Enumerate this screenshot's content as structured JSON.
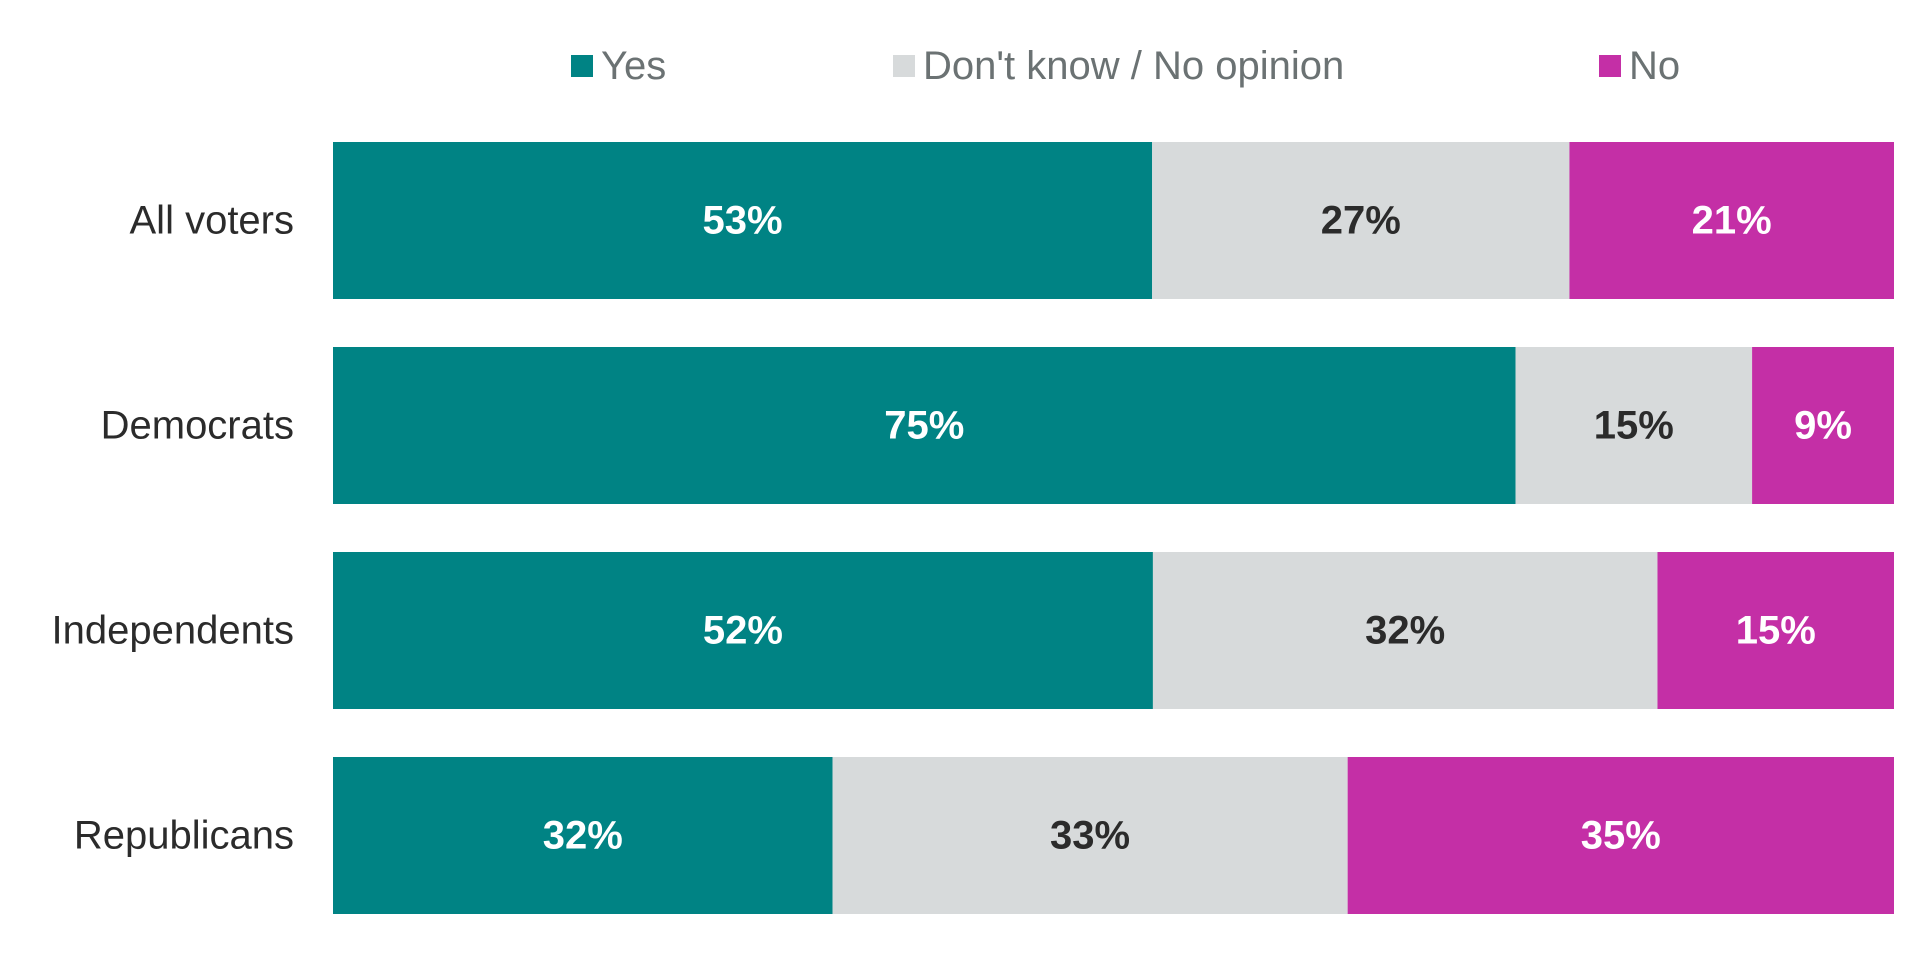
{
  "chart_data": {
    "type": "bar",
    "orientation": "horizontal",
    "stacked": true,
    "normalized": true,
    "title": "",
    "xlabel": "",
    "ylabel": "",
    "grid": false,
    "legend_position": "top",
    "categories": [
      "All voters",
      "Democrats",
      "Independents",
      "Republicans"
    ],
    "series": [
      {
        "name": "Yes",
        "color": "#008384",
        "label_color": "#ffffff",
        "values": [
          53,
          75,
          52,
          32
        ],
        "labels": [
          "53%",
          "75%",
          "52%",
          "32%"
        ]
      },
      {
        "name": "Don't know / No opinion",
        "color": "#d7dadb",
        "label_color": "#2b2b2b",
        "values": [
          27,
          15,
          32,
          33
        ],
        "labels": [
          "27%",
          "15%",
          "32%",
          "33%"
        ]
      },
      {
        "name": "No",
        "color": "#c42fa6",
        "label_color": "#ffffff",
        "values": [
          21,
          9,
          15,
          35
        ],
        "labels": [
          "21%",
          "9%",
          "15%",
          "35%"
        ]
      }
    ]
  }
}
